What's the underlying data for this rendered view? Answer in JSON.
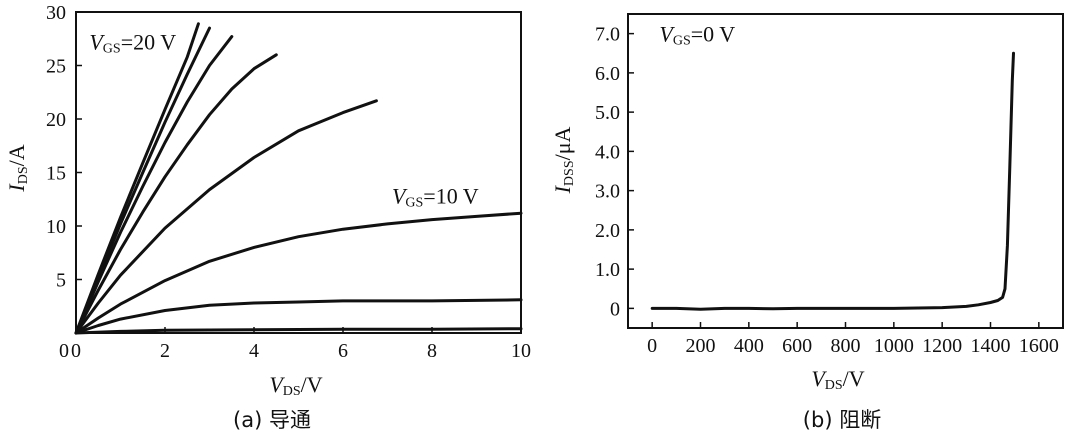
{
  "chart_data": [
    {
      "type": "line",
      "id": "conduction",
      "caption": "(a) 导通",
      "xlabel": {
        "main": "V",
        "sub": "DS",
        "unit": "/V"
      },
      "ylabel": {
        "main": "I",
        "sub": "DS",
        "unit": "/A"
      },
      "xlim": [
        0,
        10
      ],
      "ylim": [
        0,
        30
      ],
      "xticks": [
        "0",
        "2",
        "4",
        "6",
        "8",
        "10"
      ],
      "yticks": [
        "5",
        "10",
        "15",
        "20",
        "25",
        "30"
      ],
      "grid": false,
      "annotations": [
        {
          "main": "V",
          "sub": "GS",
          "value": "=20 V",
          "x": 0.3,
          "y": 26.5
        },
        {
          "main": "V",
          "sub": "GS",
          "value": "=10 V",
          "x": 7.1,
          "y": 12.1
        }
      ],
      "series": [
        {
          "x": [
            0,
            0.5,
            1,
            1.5,
            2,
            2.5,
            2.75
          ],
          "y": [
            0,
            5.5,
            10.8,
            15.9,
            20.9,
            25.8,
            28.9
          ]
        },
        {
          "x": [
            0,
            0.5,
            1,
            1.5,
            2,
            2.5,
            3.0
          ],
          "y": [
            0,
            5.2,
            10.2,
            15.0,
            19.7,
            24.2,
            28.5
          ]
        },
        {
          "x": [
            0,
            0.5,
            1,
            1.5,
            2,
            2.5,
            3.0,
            3.5
          ],
          "y": [
            0,
            4.8,
            9.4,
            13.7,
            17.8,
            21.6,
            25.0,
            27.7
          ]
        },
        {
          "x": [
            0,
            0.5,
            1,
            1.5,
            2,
            2.5,
            3,
            3.5,
            4,
            4.5
          ],
          "y": [
            0,
            4.0,
            7.8,
            11.3,
            14.6,
            17.6,
            20.4,
            22.8,
            24.7,
            26.0
          ]
        },
        {
          "x": [
            0,
            0.5,
            1,
            2,
            3,
            4,
            5,
            6,
            6.75
          ],
          "y": [
            0,
            2.8,
            5.4,
            9.8,
            13.4,
            16.4,
            18.9,
            20.6,
            21.7
          ]
        },
        {
          "x": [
            0,
            0.5,
            1,
            2,
            3,
            4,
            5,
            6,
            7,
            8,
            9,
            10
          ],
          "y": [
            0,
            1.4,
            2.7,
            4.9,
            6.7,
            8.0,
            9.0,
            9.7,
            10.2,
            10.6,
            10.9,
            11.2
          ]
        },
        {
          "x": [
            0,
            0.5,
            1,
            2,
            3,
            4,
            5,
            6,
            7,
            8,
            9,
            10
          ],
          "y": [
            0,
            0.7,
            1.3,
            2.1,
            2.6,
            2.8,
            2.9,
            3.0,
            3.0,
            3.0,
            3.05,
            3.1
          ]
        },
        {
          "x": [
            0,
            1,
            2,
            4,
            6,
            8,
            10
          ],
          "y": [
            0,
            0.15,
            0.25,
            0.3,
            0.35,
            0.35,
            0.4
          ]
        }
      ]
    },
    {
      "type": "line",
      "id": "blocking",
      "caption": "(b) 阻断",
      "xlabel": {
        "main": "V",
        "sub": "DS",
        "unit": "/V"
      },
      "ylabel": {
        "main": "I",
        "sub": "DSS",
        "unit": "/μA"
      },
      "xlim": [
        -100,
        1700
      ],
      "ylim": [
        -0.5,
        7.5
      ],
      "xticks": [
        "0",
        "200",
        "400",
        "600",
        "800",
        "1000",
        "1200",
        "1400",
        "1600"
      ],
      "yticks": [
        "0",
        "1.0",
        "2.0",
        "3.0",
        "4.0",
        "5.0",
        "6.0",
        "7.0"
      ],
      "grid": false,
      "annotations": [
        {
          "main": "V",
          "sub": "GS",
          "value": "=0 V",
          "x": 30,
          "y": 6.8
        }
      ],
      "series": [
        {
          "x": [
            0,
            100,
            200,
            300,
            400,
            500,
            600,
            700,
            800,
            900,
            1000,
            1100,
            1200,
            1300,
            1350,
            1400,
            1430,
            1450,
            1460,
            1470,
            1480,
            1490,
            1495
          ],
          "y": [
            0.0,
            0.0,
            -0.02,
            0.0,
            0.0,
            -0.01,
            0.0,
            0.0,
            0.0,
            0.0,
            0.0,
            0.01,
            0.02,
            0.05,
            0.09,
            0.15,
            0.2,
            0.28,
            0.5,
            1.6,
            3.6,
            5.8,
            6.5
          ]
        }
      ]
    }
  ]
}
